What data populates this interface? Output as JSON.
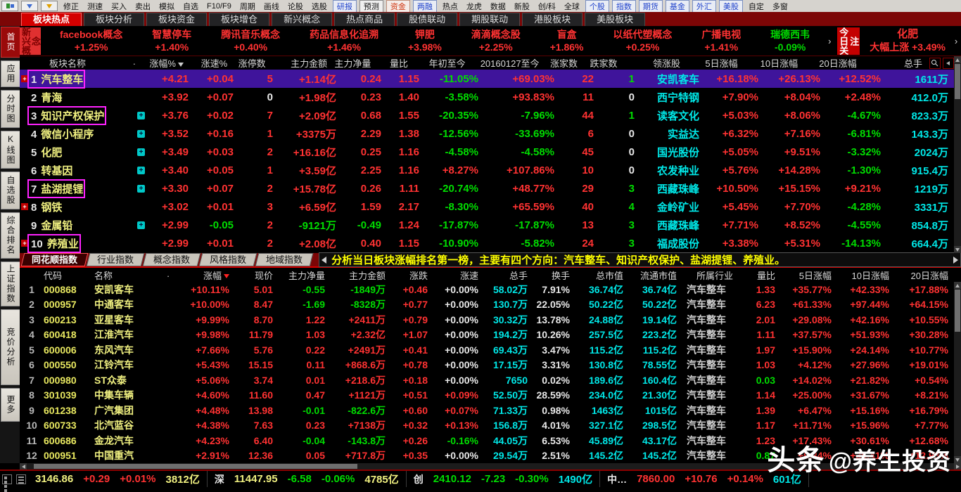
{
  "toolbar": {
    "items": [
      {
        "label": "修正"
      },
      {
        "label": "测速"
      },
      {
        "label": "买入"
      },
      {
        "label": "卖出"
      },
      {
        "label": "模拟"
      },
      {
        "label": "自选"
      },
      {
        "label": "F10/F9"
      },
      {
        "label": "周期"
      },
      {
        "label": "画线"
      },
      {
        "label": "论股"
      },
      {
        "label": "选股"
      },
      {
        "label": "研报",
        "style": "box-blue"
      },
      {
        "label": "预测",
        "style": "box-black"
      },
      {
        "label": "资金",
        "style": "box-red"
      },
      {
        "label": "两融",
        "style": "box-blue"
      },
      {
        "label": "热点"
      },
      {
        "label": "龙虎"
      },
      {
        "label": "数据"
      },
      {
        "label": "新股"
      },
      {
        "label": "创/科"
      },
      {
        "label": "全球"
      },
      {
        "label": "个股",
        "style": "box-blue"
      },
      {
        "label": "指数",
        "style": "box-blue"
      },
      {
        "label": "期货",
        "style": "box-blue"
      },
      {
        "label": "基金",
        "style": "box-blue"
      },
      {
        "label": "外汇",
        "style": "box-blue"
      },
      {
        "label": "美股",
        "style": "box-blue"
      },
      {
        "label": "自定"
      },
      {
        "label": "多窗"
      }
    ]
  },
  "tabs": {
    "active_index": 0,
    "items": [
      "板块热点",
      "板块分析",
      "板块资金",
      "板块增仓",
      "新兴概念",
      "热点商品",
      "股债联动",
      "期股联动",
      "港股板块",
      "美股板块"
    ]
  },
  "sidebar": {
    "items": [
      "首页",
      "应用",
      "分时图",
      "K线图",
      "自选股",
      "综合排名",
      "上证指数",
      "竞价分析",
      "更多"
    ]
  },
  "concept_strip": {
    "label": "新兴概念",
    "items": [
      {
        "name": "facebook概念",
        "change": "+1.25%",
        "dir": "up"
      },
      {
        "name": "智慧停车",
        "change": "+1.40%",
        "dir": "up"
      },
      {
        "name": "腾讯音乐概念",
        "change": "+0.40%",
        "dir": "up"
      },
      {
        "name": "药品信息化追溯",
        "change": "+1.46%",
        "dir": "up"
      },
      {
        "name": "钾肥",
        "change": "+3.98%",
        "dir": "up"
      },
      {
        "name": "滴滴概念股",
        "change": "+2.25%",
        "dir": "up"
      },
      {
        "name": "盲盒",
        "change": "+1.86%",
        "dir": "up"
      },
      {
        "name": "以纸代塑概念",
        "change": "+0.25%",
        "dir": "up"
      },
      {
        "name": "广播电视",
        "change": "+1.41%",
        "dir": "up"
      },
      {
        "name": "瑞德西韦",
        "change": "-0.09%",
        "dir": "down"
      }
    ],
    "today_focus_label": "今日关注",
    "focus_item": {
      "name": "化肥",
      "desc": "大幅上涨",
      "change": "+3.49%"
    }
  },
  "colors": {
    "up": "#ff3232",
    "down": "#00dd00",
    "name": "#f0f080",
    "leader": "#00e8e8",
    "selected_row": "#3f149b",
    "annotation_box": "#ff22ff",
    "accent_red": "#d40000"
  },
  "top_table": {
    "headers": [
      "板块名称",
      ".",
      "涨幅%",
      "涨速%",
      "涨停数",
      "主力金额",
      "主力净量",
      "量比",
      "年初至今",
      "20160127至今",
      "涨家数",
      "跌家数",
      "领涨股",
      "5日涨幅",
      "10日涨幅",
      "20日涨幅",
      "总手"
    ],
    "sort_column": "涨幅%",
    "rows": [
      {
        "seq": "1",
        "name": "汽车整车",
        "box": true,
        "lplus": true,
        "expand": false,
        "selected": true,
        "c": [
          "+4.21",
          "+0.04",
          "5",
          "+1.14亿",
          "0.24",
          "1.15",
          "-11.05%",
          "+69.03%",
          "22",
          "1",
          "安凯客车",
          "+16.18%",
          "+26.13%",
          "+12.52%",
          "1611万"
        ]
      },
      {
        "seq": "2",
        "name": "青海",
        "box": false,
        "lplus": false,
        "expand": false,
        "c": [
          "+3.92",
          "+0.07",
          "0",
          "+1.98亿",
          "0.23",
          "1.40",
          "-3.58%",
          "+93.83%",
          "11",
          "0",
          "西宁特钢",
          "+7.90%",
          "+8.04%",
          "+2.48%",
          "412.0万"
        ]
      },
      {
        "seq": "3",
        "name": "知识产权保护",
        "box": true,
        "lplus": false,
        "expand": true,
        "c": [
          "+3.76",
          "+0.02",
          "7",
          "+2.09亿",
          "0.68",
          "1.55",
          "-20.35%",
          "-7.96%",
          "44",
          "1",
          "读客文化",
          "+5.03%",
          "+8.06%",
          "-4.67%",
          "823.3万"
        ]
      },
      {
        "seq": "4",
        "name": "微信小程序",
        "box": false,
        "lplus": false,
        "expand": true,
        "c": [
          "+3.52",
          "+0.16",
          "1",
          "+3375万",
          "2.29",
          "1.38",
          "-12.56%",
          "-33.69%",
          "6",
          "0",
          "实益达",
          "+6.32%",
          "+7.16%",
          "-6.81%",
          "143.3万"
        ]
      },
      {
        "seq": "5",
        "name": "化肥",
        "box": false,
        "lplus": false,
        "expand": true,
        "c": [
          "+3.49",
          "+0.03",
          "2",
          "+16.16亿",
          "0.25",
          "1.16",
          "-4.58%",
          "-4.58%",
          "45",
          "0",
          "国光股份",
          "+5.05%",
          "+9.51%",
          "-3.32%",
          "2024万"
        ]
      },
      {
        "seq": "6",
        "name": "转基因",
        "box": false,
        "lplus": false,
        "expand": true,
        "c": [
          "+3.40",
          "+0.05",
          "1",
          "+3.59亿",
          "2.25",
          "1.16",
          "+8.27%",
          "+107.86%",
          "10",
          "0",
          "农发种业",
          "+5.76%",
          "+14.28%",
          "-1.30%",
          "915.4万"
        ]
      },
      {
        "seq": "7",
        "name": "盐湖提锂",
        "box": true,
        "lplus": false,
        "expand": true,
        "c": [
          "+3.30",
          "+0.07",
          "2",
          "+15.78亿",
          "0.26",
          "1.11",
          "-20.74%",
          "+48.77%",
          "29",
          "3",
          "西藏珠峰",
          "+10.50%",
          "+15.15%",
          "+9.21%",
          "1219万"
        ]
      },
      {
        "seq": "8",
        "name": "钢铁",
        "box": false,
        "lplus": true,
        "expand": false,
        "c": [
          "+3.02",
          "+0.01",
          "3",
          "+6.59亿",
          "1.59",
          "2.17",
          "-8.30%",
          "+65.59%",
          "40",
          "4",
          "金岭矿业",
          "+5.45%",
          "+7.70%",
          "-4.28%",
          "3331万"
        ]
      },
      {
        "seq": "9",
        "name": "金属铅",
        "box": false,
        "lplus": false,
        "expand": true,
        "c": [
          "+2.99",
          "-0.05",
          "2",
          "-9121万",
          "-0.49",
          "1.24",
          "-17.87%",
          "-17.87%",
          "13",
          "3",
          "西藏珠峰",
          "+7.71%",
          "+8.52%",
          "-4.55%",
          "854.8万"
        ]
      },
      {
        "seq": "10",
        "name": "养殖业",
        "box": true,
        "lplus": true,
        "expand": false,
        "c": [
          "+2.99",
          "+0.01",
          "2",
          "+2.08亿",
          "0.40",
          "1.15",
          "-10.90%",
          "-5.82%",
          "24",
          "3",
          "福成股份",
          "+3.38%",
          "+5.31%",
          "-14.13%",
          "664.4万"
        ]
      }
    ]
  },
  "index_tabs": {
    "active_index": 0,
    "items": [
      "同花顺指数",
      "行业指数",
      "概念指数",
      "风格指数",
      "地域指数"
    ]
  },
  "annotation": "分析当日板块涨幅排名第一榜，主要有四个方向：汽车整车、知识产权保护、盐湖提锂、养殖业。",
  "bottom_table": {
    "headers": [
      "代码",
      "名称",
      ".",
      "涨幅",
      "现价",
      "主力净量",
      "主力金额",
      "涨跌",
      "涨速",
      "总手",
      "换手",
      "总市值",
      "流通市值",
      "所属行业",
      "量比",
      "5日涨幅",
      "10日涨幅",
      "20日涨幅"
    ],
    "sort_column": "涨幅",
    "rows": [
      {
        "seq": "1",
        "code": "000868",
        "name": "安凯客车",
        "c": [
          "+10.11%",
          "5.01",
          "-0.55",
          "-1849万",
          "+0.46",
          "+0.00%",
          "58.02万",
          "7.91%",
          "36.74亿",
          "36.74亿",
          "汽车整车",
          "1.33",
          "+35.77%",
          "+42.33%",
          "+17.88%"
        ]
      },
      {
        "seq": "2",
        "code": "000957",
        "name": "中通客车",
        "c": [
          "+10.00%",
          "8.47",
          "-1.69",
          "-8328万",
          "+0.77",
          "+0.00%",
          "130.7万",
          "22.05%",
          "50.22亿",
          "50.22亿",
          "汽车整车",
          "6.23",
          "+61.33%",
          "+97.44%",
          "+64.15%"
        ]
      },
      {
        "seq": "3",
        "code": "600213",
        "name": "亚星客车",
        "c": [
          "+9.99%",
          "8.70",
          "1.22",
          "+2411万",
          "+0.79",
          "+0.00%",
          "30.32万",
          "13.78%",
          "24.88亿",
          "19.14亿",
          "汽车整车",
          "2.01",
          "+29.08%",
          "+42.16%",
          "+10.55%"
        ]
      },
      {
        "seq": "4",
        "code": "600418",
        "name": "江淮汽车",
        "c": [
          "+9.98%",
          "11.79",
          "1.03",
          "+2.32亿",
          "+1.07",
          "+0.00%",
          "194.2万",
          "10.26%",
          "257.5亿",
          "223.2亿",
          "汽车整车",
          "1.11",
          "+37.57%",
          "+51.93%",
          "+30.28%"
        ]
      },
      {
        "seq": "5",
        "code": "600006",
        "name": "东风汽车",
        "c": [
          "+7.66%",
          "5.76",
          "0.22",
          "+2491万",
          "+0.41",
          "+0.00%",
          "69.43万",
          "3.47%",
          "115.2亿",
          "115.2亿",
          "汽车整车",
          "1.97",
          "+15.90%",
          "+24.14%",
          "+10.77%"
        ]
      },
      {
        "seq": "6",
        "code": "000550",
        "name": "江铃汽车",
        "c": [
          "+5.43%",
          "15.15",
          "0.11",
          "+868.6万",
          "+0.78",
          "+0.00%",
          "17.15万",
          "3.31%",
          "130.8亿",
          "78.55亿",
          "汽车整车",
          "1.03",
          "+4.12%",
          "+27.96%",
          "+19.01%"
        ]
      },
      {
        "seq": "7",
        "code": "000980",
        "name": "ST众泰",
        "c": [
          "+5.06%",
          "3.74",
          "0.01",
          "+218.6万",
          "+0.18",
          "+0.00%",
          "7650",
          "0.02%",
          "189.6亿",
          "160.4亿",
          "汽车整车",
          "0.03",
          "+14.02%",
          "+21.82%",
          "+0.54%"
        ]
      },
      {
        "seq": "8",
        "code": "301039",
        "name": "中集车辆",
        "c": [
          "+4.60%",
          "11.60",
          "0.47",
          "+1121万",
          "+0.51",
          "+0.09%",
          "52.50万",
          "28.59%",
          "234.0亿",
          "21.30亿",
          "汽车整车",
          "1.14",
          "+25.00%",
          "+31.67%",
          "+8.21%"
        ]
      },
      {
        "seq": "9",
        "code": "601238",
        "name": "广汽集团",
        "c": [
          "+4.48%",
          "13.98",
          "-0.01",
          "-822.6万",
          "+0.60",
          "+0.07%",
          "71.33万",
          "0.98%",
          "1463亿",
          "1015亿",
          "汽车整车",
          "1.39",
          "+6.47%",
          "+15.16%",
          "+16.79%"
        ]
      },
      {
        "seq": "10",
        "code": "600733",
        "name": "北汽蓝谷",
        "c": [
          "+4.38%",
          "7.63",
          "0.23",
          "+7138万",
          "+0.32",
          "+0.13%",
          "156.8万",
          "4.01%",
          "327.1亿",
          "298.5亿",
          "汽车整车",
          "1.17",
          "+11.71%",
          "+15.96%",
          "+7.77%"
        ]
      },
      {
        "seq": "11",
        "code": "600686",
        "name": "金龙汽车",
        "c": [
          "+4.23%",
          "6.40",
          "-0.04",
          "-143.8万",
          "+0.26",
          "-0.16%",
          "44.05万",
          "6.53%",
          "45.89亿",
          "43.17亿",
          "汽车整车",
          "1.23",
          "+17.43%",
          "+30.61%",
          "+12.68%"
        ]
      },
      {
        "seq": "12",
        "code": "000951",
        "name": "中国重汽",
        "c": [
          "+2.91%",
          "12.36",
          "0.05",
          "+717.8万",
          "+0.35",
          "+0.00%",
          "29.54万",
          "2.51%",
          "145.2亿",
          "145.2亿",
          "汽车整车",
          "0.87",
          "+9.34%",
          "+35.41%",
          "+12.93%"
        ]
      }
    ]
  },
  "status_bar": {
    "groups": [
      {
        "label": "",
        "value": "3146.86",
        "value_color": "yellow",
        "change": "+0.29",
        "pct": "+0.01%",
        "change_color": "red",
        "amount": "3812亿",
        "amount_color": "yellow"
      },
      {
        "label": "深",
        "value": "11447.95",
        "value_color": "yellow",
        "change": "-6.58",
        "pct": "-0.06%",
        "change_color": "green",
        "amount": "4785亿",
        "amount_color": "yellow"
      },
      {
        "label": "创",
        "value": "2410.12",
        "value_color": "green",
        "change": "-7.23",
        "pct": "-0.30%",
        "change_color": "green",
        "amount": "1490亿",
        "amount_color": "cyan"
      },
      {
        "label": "中…",
        "value": "7860.00",
        "value_color": "red",
        "change": "+10.76",
        "pct": "+0.14%",
        "change_color": "red",
        "amount": "601亿",
        "amount_color": "cyan"
      }
    ]
  },
  "watermark": {
    "brand": "头条",
    "handle": "@养生投资"
  }
}
